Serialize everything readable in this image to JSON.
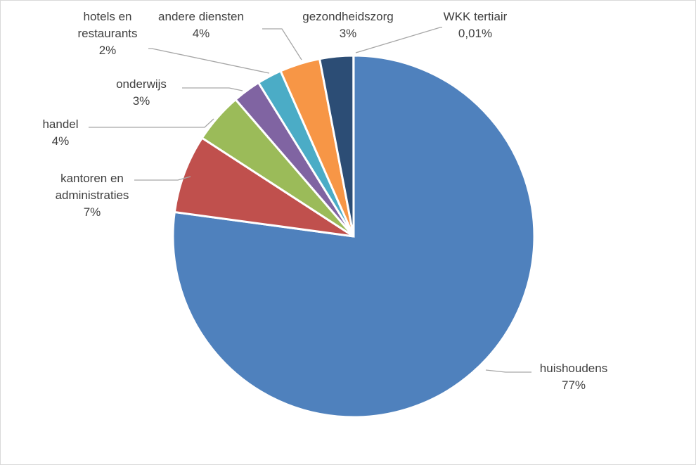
{
  "chart_data": {
    "type": "pie",
    "start_angle_deg": 0,
    "direction": "clockwise",
    "slices": [
      {
        "name": "huishoudens",
        "percent_label": "77%",
        "value": 77.0,
        "color": "#4f81bd"
      },
      {
        "name": "kantoren en administraties",
        "percent_label": "7%",
        "value": 7.0,
        "color": "#c0504d"
      },
      {
        "name": "handel",
        "percent_label": "4%",
        "value": 4.5,
        "color": "#9bbb59"
      },
      {
        "name": "onderwijs",
        "percent_label": "3%",
        "value": 2.5,
        "color": "#8064a2"
      },
      {
        "name": "hotels en restaurants",
        "percent_label": "2%",
        "value": 2.2,
        "color": "#4bacc6"
      },
      {
        "name": "andere diensten",
        "percent_label": "4%",
        "value": 3.6,
        "color": "#f79646"
      },
      {
        "name": "gezondheidszorg",
        "percent_label": "3%",
        "value": 3.0,
        "color": "#2c4d75"
      },
      {
        "name": "WKK tertiair",
        "percent_label": "0,01%",
        "value": 0.01,
        "color": "#772c2a"
      }
    ]
  }
}
